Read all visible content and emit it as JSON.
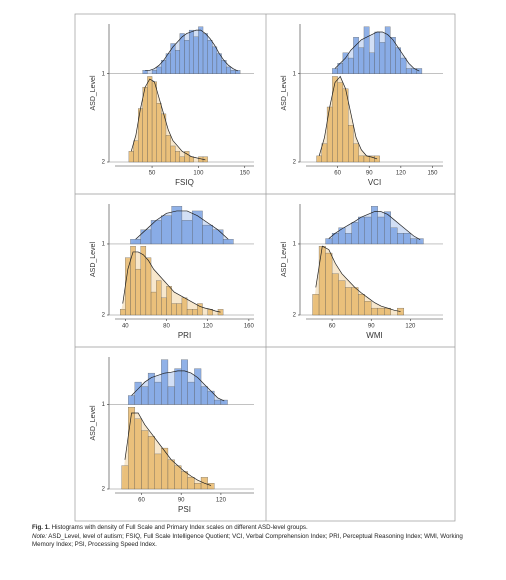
{
  "chart_data": [
    {
      "type": "ridge-histogram",
      "xlabel": "FSIQ",
      "ylabel": "ASD_Level",
      "xlim": [
        10,
        160
      ],
      "xticks": [
        50,
        100,
        150
      ],
      "series": [
        {
          "name": "1",
          "color": "#7da3e3",
          "bins": [
            40,
            45,
            50,
            55,
            60,
            65,
            70,
            75,
            80,
            85,
            90,
            95,
            100,
            105,
            110,
            115,
            120,
            125,
            130,
            135,
            140,
            145
          ],
          "counts": [
            1,
            0,
            1,
            2,
            4,
            6,
            9,
            7,
            12,
            10,
            13,
            11,
            14,
            12,
            10,
            8,
            6,
            4,
            2,
            1,
            1
          ],
          "density": [
            1,
            1,
            1.5,
            2.5,
            4,
            6,
            8,
            9.5,
            11,
            12,
            12.5,
            13,
            13,
            12,
            10.5,
            8.5,
            6,
            4,
            2.5,
            1.5,
            0.8
          ]
        },
        {
          "name": "2",
          "color": "#e8b96c",
          "bins": [
            25,
            30,
            35,
            40,
            45,
            50,
            55,
            60,
            65,
            70,
            75,
            80,
            85,
            90,
            95,
            100,
            105,
            110
          ],
          "counts": [
            2,
            4,
            10,
            14,
            16,
            15,
            11,
            9,
            5,
            3,
            2,
            1,
            2,
            1,
            0,
            1,
            1
          ],
          "density": [
            2,
            5,
            10,
            14,
            15.5,
            15,
            12,
            9,
            6,
            4,
            3,
            2,
            1.5,
            1,
            0.8,
            0.6,
            0.4
          ]
        }
      ]
    },
    {
      "type": "ridge-histogram",
      "xlabel": "VCI",
      "ylabel": "ASD_Level",
      "xlim": [
        30,
        160
      ],
      "xticks": [
        60,
        90,
        120,
        150
      ],
      "series": [
        {
          "name": "1",
          "color": "#7da3e3",
          "bins": [
            55,
            60,
            65,
            70,
            75,
            80,
            85,
            90,
            95,
            100,
            105,
            110,
            115,
            120,
            125,
            130,
            135,
            140
          ],
          "counts": [
            1,
            2,
            4,
            3,
            7,
            5,
            9,
            4,
            8,
            6,
            9,
            7,
            5,
            3,
            1,
            1,
            1
          ],
          "density": [
            1,
            2,
            3,
            4.5,
            5.5,
            6.5,
            7,
            7.5,
            8,
            8,
            7.5,
            6.5,
            5,
            3.5,
            2,
            1,
            0.5
          ]
        },
        {
          "name": "2",
          "color": "#e8b96c",
          "bins": [
            40,
            45,
            50,
            55,
            60,
            65,
            70,
            75,
            80,
            85,
            90,
            95,
            100
          ],
          "counts": [
            1,
            3,
            9,
            14,
            13,
            12,
            6,
            3,
            1,
            1,
            1,
            1
          ],
          "density": [
            1,
            4,
            9,
            13,
            14,
            12,
            8,
            4,
            2,
            1,
            0.8,
            0.5
          ]
        }
      ]
    },
    {
      "type": "ridge-histogram",
      "xlabel": "PRI",
      "ylabel": "ASD_Level",
      "xlim": [
        30,
        165
      ],
      "xticks": [
        40,
        80,
        120,
        160
      ],
      "series": [
        {
          "name": "1",
          "color": "#7da3e3",
          "bins": [
            45,
            55,
            65,
            75,
            85,
            95,
            105,
            115,
            125,
            135,
            145
          ],
          "counts": [
            1,
            3,
            5,
            6,
            8,
            5,
            7,
            4,
            3,
            1
          ],
          "density": [
            1,
            3,
            5,
            6.5,
            7,
            7,
            6,
            4.5,
            3,
            1
          ]
        },
        {
          "name": "2",
          "color": "#e8b96c",
          "bins": [
            35,
            40,
            45,
            50,
            55,
            60,
            65,
            70,
            75,
            80,
            85,
            90,
            95,
            100,
            105,
            110,
            115,
            120,
            125,
            130,
            135
          ],
          "counts": [
            1,
            10,
            12,
            8,
            12,
            10,
            4,
            6,
            3,
            5,
            2,
            2,
            3,
            1,
            1,
            2,
            0,
            1,
            0,
            1
          ],
          "density": [
            2,
            8,
            11,
            11,
            10.5,
            9.5,
            8,
            7,
            6,
            5,
            4,
            3.5,
            3,
            2.5,
            2,
            1.5,
            1.2,
            1,
            0.7,
            0.5
          ]
        }
      ]
    },
    {
      "type": "ridge-histogram",
      "xlabel": "WMI",
      "ylabel": "ASD_Level",
      "xlim": [
        40,
        145
      ],
      "xticks": [
        60,
        90,
        120
      ],
      "series": [
        {
          "name": "1",
          "color": "#7da3e3",
          "bins": [
            55,
            60,
            65,
            70,
            75,
            80,
            85,
            90,
            95,
            100,
            105,
            110,
            115,
            120,
            125,
            130
          ],
          "counts": [
            1,
            2,
            3,
            2,
            4,
            5,
            5,
            7,
            5,
            6,
            3,
            2,
            2,
            1,
            1
          ],
          "density": [
            1,
            2,
            2.8,
            3.5,
            4.2,
            5,
            5.5,
            6,
            6,
            5.5,
            4.5,
            3.5,
            2.5,
            1.5,
            0.8
          ]
        },
        {
          "name": "2",
          "color": "#e8b96c",
          "bins": [
            45,
            50,
            55,
            60,
            65,
            70,
            75,
            80,
            85,
            90,
            95,
            100,
            105,
            110,
            115
          ],
          "counts": [
            3,
            10,
            9,
            6,
            5,
            4,
            4,
            3,
            2,
            1,
            1,
            1,
            0,
            1
          ],
          "density": [
            4,
            10,
            9.5,
            7.5,
            6,
            5,
            4,
            3.2,
            2.5,
            1.8,
            1.3,
            1,
            0.7,
            0.5
          ]
        }
      ]
    },
    {
      "type": "ridge-histogram",
      "xlabel": "PSI",
      "ylabel": "ASD_Level",
      "xlim": [
        40,
        145
      ],
      "xticks": [
        60,
        90,
        120
      ],
      "series": [
        {
          "name": "1",
          "color": "#7da3e3",
          "bins": [
            50,
            55,
            60,
            65,
            70,
            75,
            80,
            85,
            90,
            95,
            100,
            105,
            110,
            115,
            120,
            125
          ],
          "counts": [
            2,
            5,
            4,
            7,
            5,
            10,
            4,
            8,
            10,
            5,
            8,
            4,
            3,
            1,
            1
          ],
          "density": [
            2,
            3.5,
            5,
            6,
            6.5,
            7,
            7.2,
            7.5,
            7.5,
            7,
            6,
            4.5,
            3,
            1.5,
            0.8
          ]
        },
        {
          "name": "2",
          "color": "#e8b96c",
          "bins": [
            45,
            50,
            55,
            60,
            65,
            70,
            75,
            80,
            85,
            90,
            95,
            100,
            105,
            110,
            115
          ],
          "counts": [
            4,
            14,
            12,
            10,
            9,
            6,
            7,
            5,
            4,
            3,
            2,
            1,
            2,
            1
          ],
          "density": [
            5,
            13,
            13,
            11,
            9.5,
            8,
            6.5,
            5,
            4,
            3,
            2.2,
            1.5,
            1,
            0.6
          ]
        }
      ]
    }
  ],
  "caption": {
    "label": "Fig. 1.",
    "text": "Histograms with density of Full Scale and Primary Index scales on different ASD-level groups.",
    "note_label": "Note:",
    "note": "ASD_Level, level of autism; FSIQ, Full Scale Intelligence Quotient; VCI, Verbal Comprehension Index; PRI, Perceptual Reasoning Index; WMI, Working Memory Index; PSI, Processing Speed Index."
  }
}
